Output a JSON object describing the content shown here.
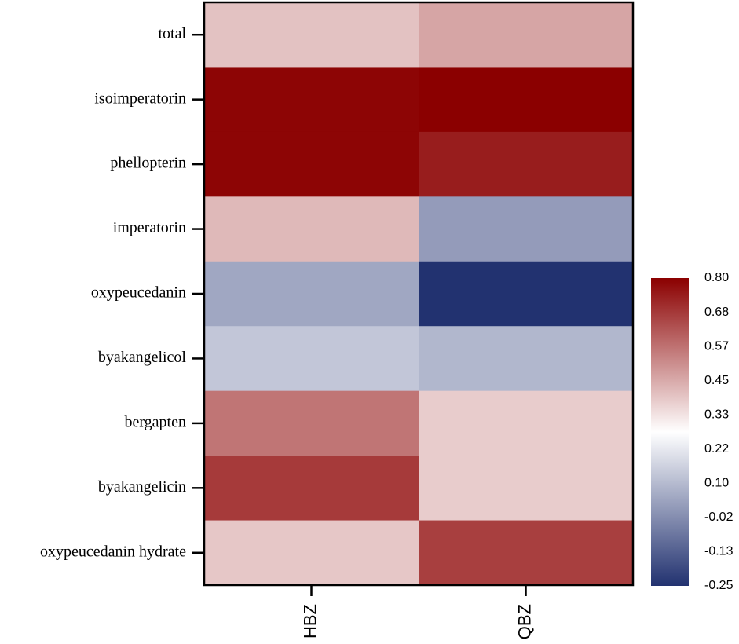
{
  "chart_data": {
    "type": "heatmap",
    "title": "",
    "xlabel": "",
    "ylabel": "",
    "rows": [
      "total",
      "isoimperatorin",
      "phellopterin",
      "imperatorin",
      "oxypeucedanin",
      "byakangelicol",
      "bergapten",
      "byakangelicin",
      "oxypeucedanin hydrate"
    ],
    "columns": [
      "HBZ",
      "QBZ"
    ],
    "values": [
      [
        0.4,
        0.46
      ],
      [
        0.79,
        0.8
      ],
      [
        0.79,
        0.74
      ],
      [
        0.42,
        0.02
      ],
      [
        0.05,
        -0.25
      ],
      [
        0.13,
        0.09
      ],
      [
        0.56,
        0.38
      ],
      [
        0.68,
        0.38
      ],
      [
        0.39,
        0.67
      ]
    ],
    "colorbar": {
      "min": -0.25,
      "max": 0.8,
      "center": 0.275,
      "ticks": [
        "0.80",
        "0.68",
        "0.57",
        "0.45",
        "0.33",
        "0.22",
        "0.10",
        "-0.02",
        "-0.13",
        "-0.25"
      ],
      "colors": {
        "low": "#223270",
        "mid": "#ffffff",
        "high": "#8b0000"
      }
    }
  }
}
